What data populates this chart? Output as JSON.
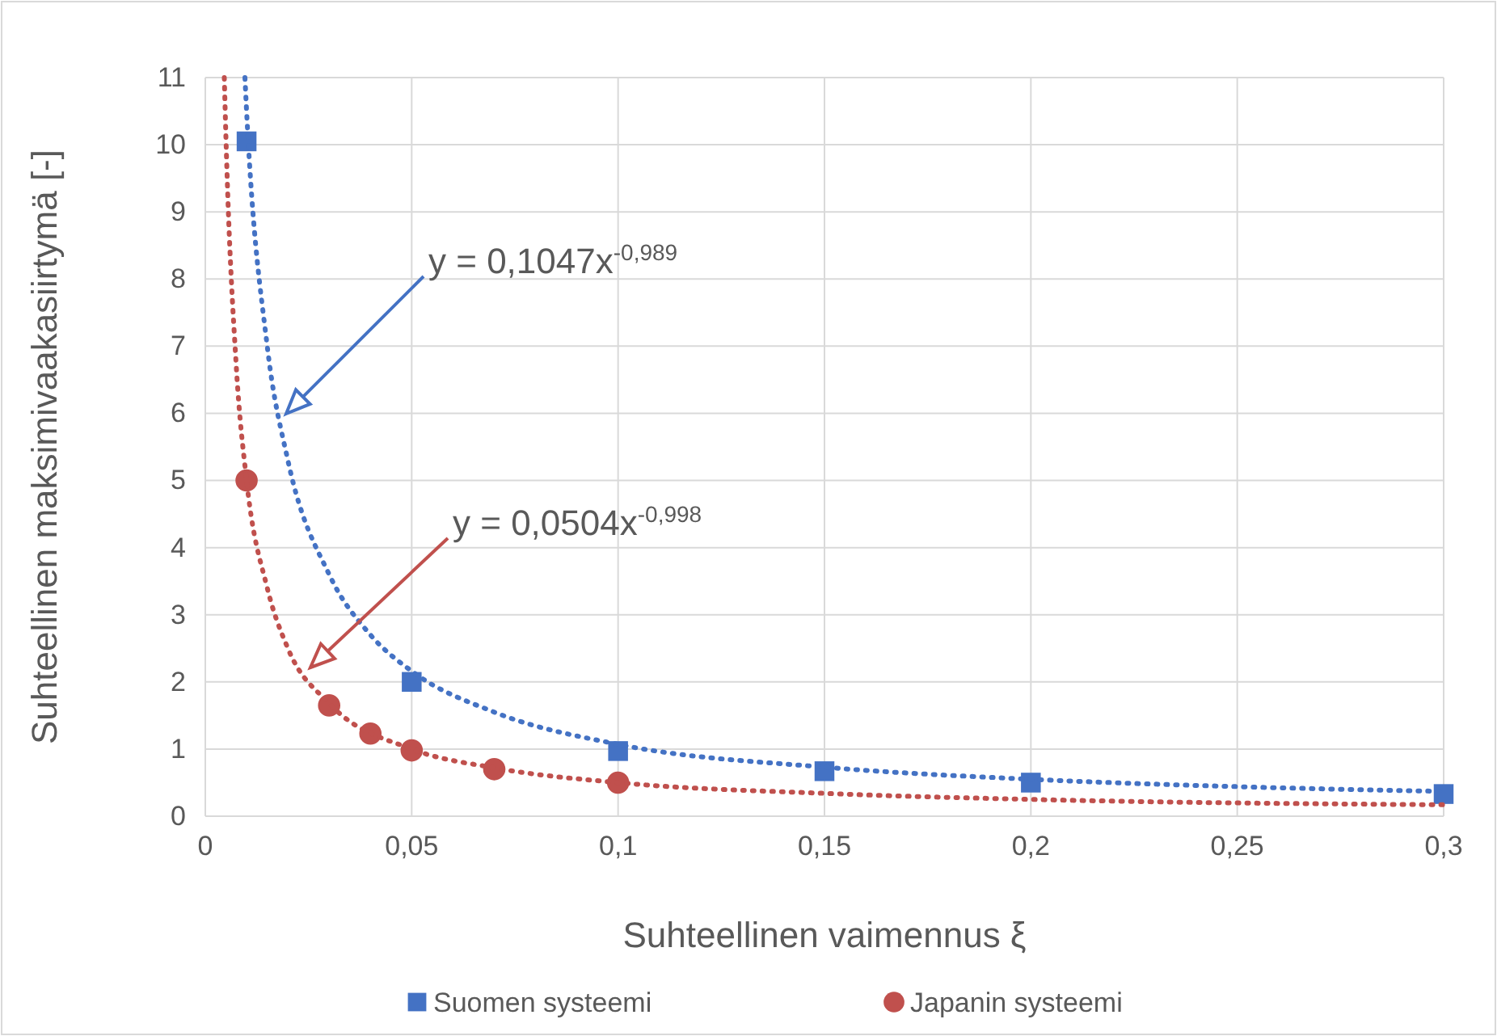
{
  "chart_data": {
    "type": "scatter",
    "xlabel": "Suhteellinen vaimennus ξ",
    "ylabel": "Suhteellinen maksimivaakasiirtymä [-]",
    "xlim": [
      0,
      0.3
    ],
    "ylim": [
      0,
      11
    ],
    "xticks": [
      0,
      {
        "value": 0.05,
        "label": "0,05"
      },
      {
        "value": 0.1,
        "label": "0,1"
      },
      {
        "value": 0.15,
        "label": "0,15"
      },
      {
        "value": 0.2,
        "label": "0,2"
      },
      {
        "value": 0.25,
        "label": "0,25"
      },
      {
        "value": 0.3,
        "label": "0,3"
      }
    ],
    "yticks": [
      0,
      1,
      2,
      3,
      4,
      5,
      6,
      7,
      8,
      9,
      10,
      11
    ],
    "grid": true,
    "legend": "bottom",
    "series": [
      {
        "name": "Suomen systeemi",
        "color": "#4472c4",
        "marker": "square",
        "x": [
          0.01,
          0.05,
          0.1,
          0.15,
          0.2,
          0.3
        ],
        "values": [
          10.05,
          2.0,
          0.97,
          0.67,
          0.5,
          0.33
        ]
      },
      {
        "name": "Japanin systeemi",
        "color": "#c0504d",
        "marker": "circle",
        "x": [
          0.01,
          0.03,
          0.04,
          0.05,
          0.07,
          0.1
        ],
        "values": [
          5.0,
          1.65,
          1.23,
          0.98,
          0.7,
          0.5
        ]
      },
      {
        "type": "line",
        "color": "#4472c4",
        "line_style": "dotted",
        "marker": "none",
        "x": [
          0.0096,
          0.01,
          0.015,
          0.02,
          0.03,
          0.04,
          0.05,
          0.07,
          0.1,
          0.15,
          0.2,
          0.25,
          0.3
        ],
        "values": [
          11,
          10.5,
          7.0,
          5.3,
          3.6,
          2.7,
          2.16,
          1.55,
          1.07,
          0.73,
          0.55,
          0.44,
          0.37
        ]
      },
      {
        "type": "line",
        "color": "#c0504d",
        "line_style": "dotted",
        "marker": "none",
        "x": [
          0.0046,
          0.005,
          0.0075,
          0.01,
          0.015,
          0.02,
          0.03,
          0.05,
          0.07,
          0.1,
          0.15,
          0.2,
          0.3
        ],
        "values": [
          11,
          10.1,
          6.7,
          5.0,
          3.4,
          2.5,
          1.68,
          1.0,
          0.72,
          0.5,
          0.34,
          0.25,
          0.17
        ]
      }
    ],
    "annotations": [
      "y = 0,1047x$^{-0,989}$",
      "y = 0,0504x$^{-0,998}$"
    ]
  }
}
